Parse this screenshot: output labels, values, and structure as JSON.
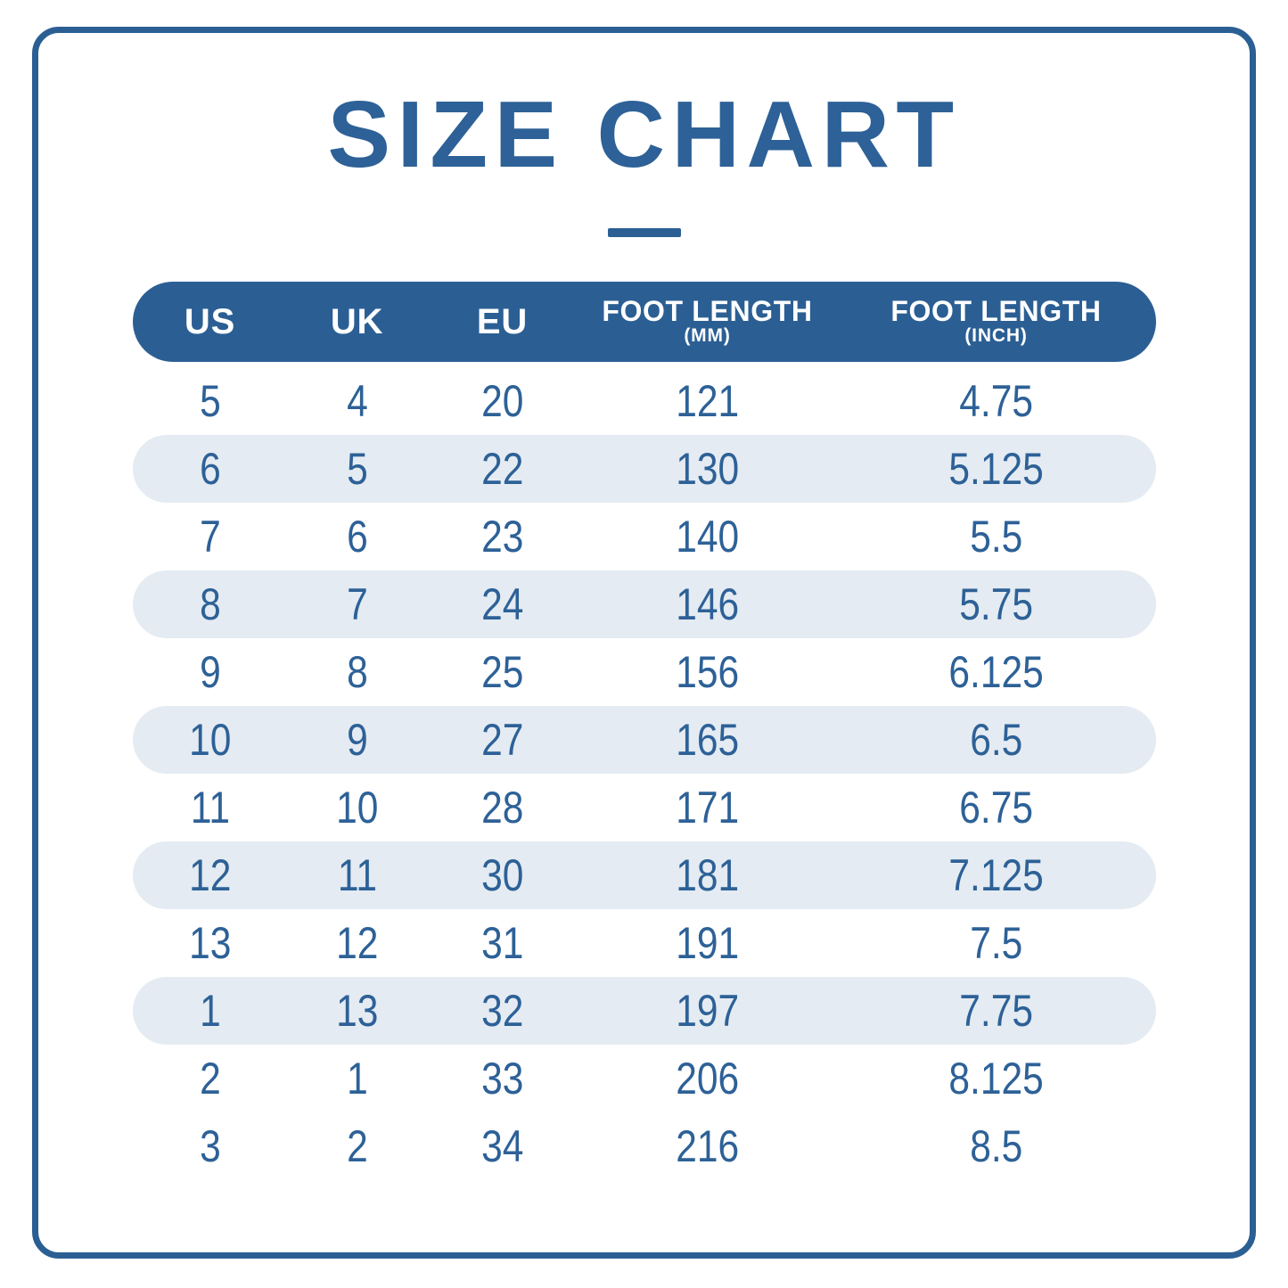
{
  "page": {
    "title": "SIZE CHART"
  },
  "colors": {
    "accent_blue": "#2b5f94",
    "text_blue": "#2d6197",
    "row_shade": "#e4ebf2",
    "background": "#ffffff"
  },
  "table": {
    "columns": [
      {
        "label": "US",
        "sub": ""
      },
      {
        "label": "UK",
        "sub": ""
      },
      {
        "label": "EU",
        "sub": ""
      },
      {
        "label": "FOOT LENGTH",
        "sub": "(MM)"
      },
      {
        "label": "FOOT LENGTH",
        "sub": "(INCH)"
      }
    ],
    "rows": [
      {
        "us": "5",
        "uk": "4",
        "eu": "20",
        "mm": "121",
        "inch": "4.75",
        "shaded": false
      },
      {
        "us": "6",
        "uk": "5",
        "eu": "22",
        "mm": "130",
        "inch": "5.125",
        "shaded": true
      },
      {
        "us": "7",
        "uk": "6",
        "eu": "23",
        "mm": "140",
        "inch": "5.5",
        "shaded": false
      },
      {
        "us": "8",
        "uk": "7",
        "eu": "24",
        "mm": "146",
        "inch": "5.75",
        "shaded": true
      },
      {
        "us": "9",
        "uk": "8",
        "eu": "25",
        "mm": "156",
        "inch": "6.125",
        "shaded": false
      },
      {
        "us": "10",
        "uk": "9",
        "eu": "27",
        "mm": "165",
        "inch": "6.5",
        "shaded": true
      },
      {
        "us": "11",
        "uk": "10",
        "eu": "28",
        "mm": "171",
        "inch": "6.75",
        "shaded": false
      },
      {
        "us": "12",
        "uk": "11",
        "eu": "30",
        "mm": "181",
        "inch": "7.125",
        "shaded": true
      },
      {
        "us": "13",
        "uk": "12",
        "eu": "31",
        "mm": "191",
        "inch": "7.5",
        "shaded": false
      },
      {
        "us": "1",
        "uk": "13",
        "eu": "32",
        "mm": "197",
        "inch": "7.75",
        "shaded": true
      },
      {
        "us": "2",
        "uk": "1",
        "eu": "33",
        "mm": "206",
        "inch": "8.125",
        "shaded": false
      },
      {
        "us": "3",
        "uk": "2",
        "eu": "34",
        "mm": "216",
        "inch": "8.5",
        "shaded": false
      }
    ]
  },
  "chart_data": {
    "type": "table",
    "title": "SIZE CHART",
    "columns": [
      "US",
      "UK",
      "EU",
      "FOOT LENGTH (MM)",
      "FOOT LENGTH (INCH)"
    ],
    "rows": [
      [
        5,
        4,
        20,
        121,
        4.75
      ],
      [
        6,
        5,
        22,
        130,
        5.125
      ],
      [
        7,
        6,
        23,
        140,
        5.5
      ],
      [
        8,
        7,
        24,
        146,
        5.75
      ],
      [
        9,
        8,
        25,
        156,
        6.125
      ],
      [
        10,
        9,
        27,
        165,
        6.5
      ],
      [
        11,
        10,
        28,
        171,
        6.75
      ],
      [
        12,
        11,
        30,
        181,
        7.125
      ],
      [
        13,
        12,
        31,
        191,
        7.5
      ],
      [
        1,
        13,
        32,
        197,
        7.75
      ],
      [
        2,
        1,
        33,
        206,
        8.125
      ],
      [
        3,
        2,
        34,
        216,
        8.5
      ]
    ],
    "layout": {
      "header_background": "#2b5f94",
      "zebra_shade": "#e4ebf2",
      "text_color": "#2d6197"
    }
  }
}
